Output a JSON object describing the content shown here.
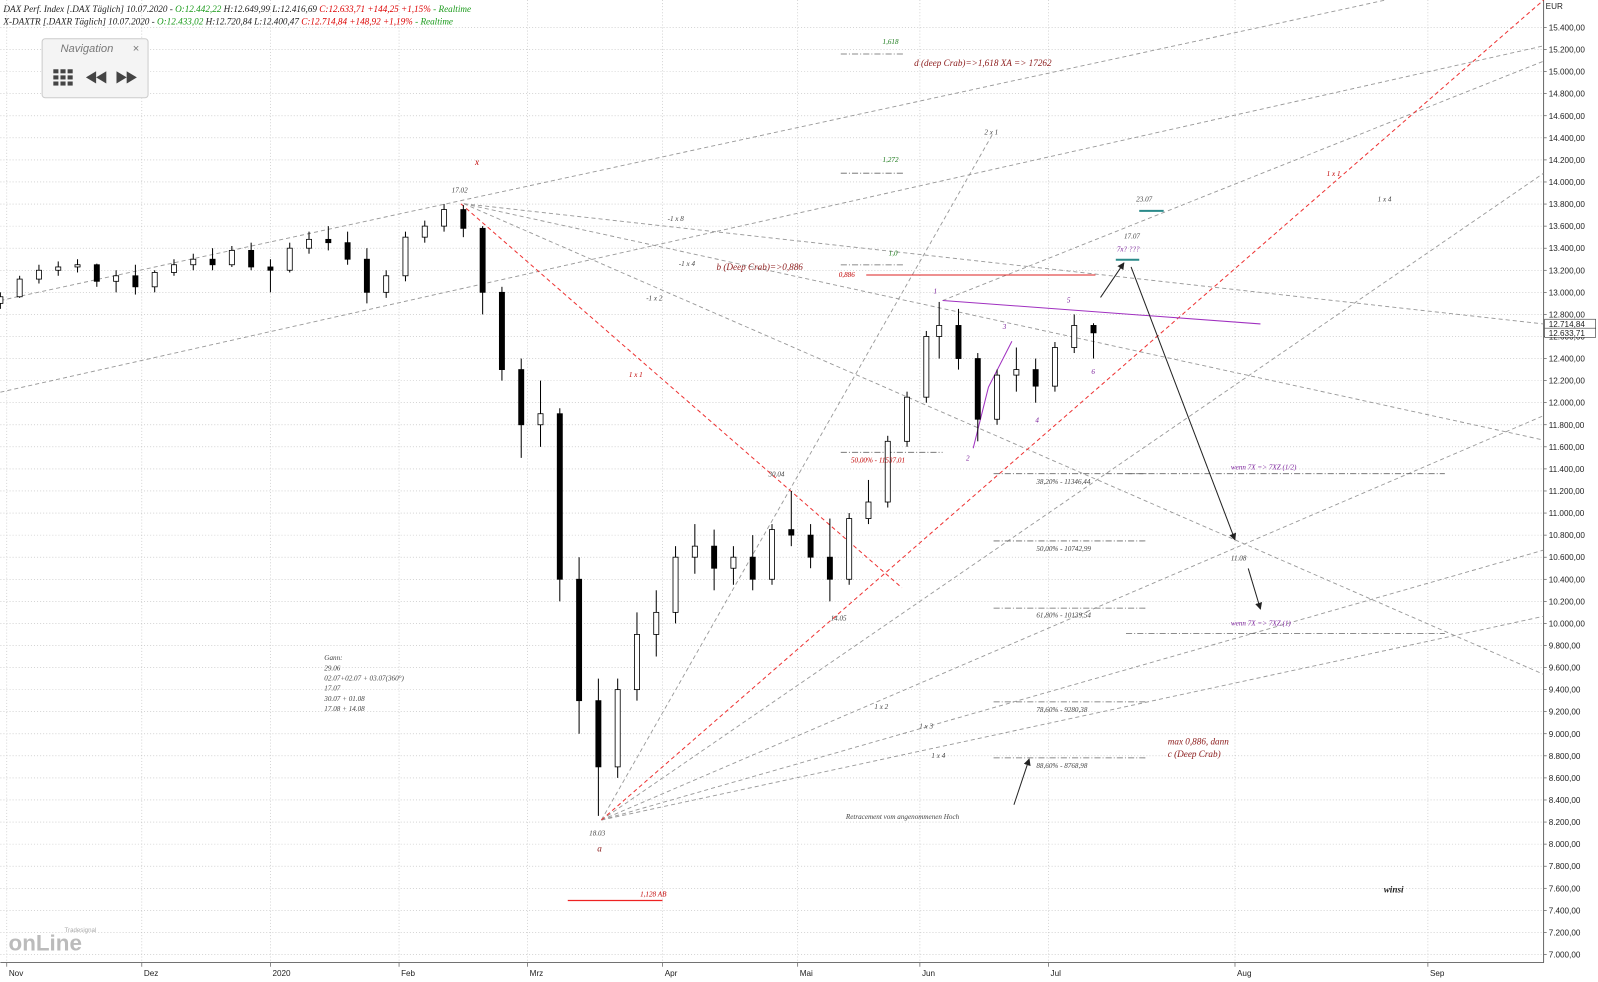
{
  "header": {
    "line1": [
      "DAX Perf. Index [.DAX Täglich] 10.07.2020 - ",
      "O:12.442,22",
      "H:12.649,99 L:12.416,69",
      "C:12.633,71 +144,25 +1,15%",
      "- Realtime"
    ],
    "line2": [
      "X-DAXTR [.DAXR Täglich] 10.07.2020 - ",
      "O:12.433,02",
      "H:12.720,84 L:12.400,47",
      "C:12.714,84 +148,92 +1,19%",
      "- Realtime"
    ]
  },
  "navigation": {
    "title": "Navigation",
    "close": "×"
  },
  "logo": {
    "brand": "Tradesignal",
    "name": "onLine"
  },
  "annotations": [
    "1,618",
    "1,272",
    "1,0",
    "d (deep Crab)=>1,618 XA => 17262",
    "x",
    "17.02",
    "2 x 1",
    "-1 x 8",
    "-1 x 4",
    "-1 x 2",
    "b (Deep Crab)=>0,886",
    "0,886",
    "1 x 1",
    "1 x 1",
    "1 x 4",
    "23.07",
    "17.07",
    "7x? ???",
    "1",
    "5",
    "3",
    "6",
    "4",
    "2",
    "50,00% - 11537,01",
    "38,20% - 11346,44",
    "50,00% - 10742,99",
    "61,80% - 10139,54",
    "78,60% - 9280,38",
    "88,60% - 8768,98",
    "wenn 7X => 7XZ (1/2)",
    "wenn 7X => 7XZ (1)",
    "30.04",
    "14.05",
    "11.08",
    "18.03",
    "a",
    "1,128 AB",
    "Gann:",
    "29.06",
    "02.07+02.07 + 03.07(360°)",
    "17.07",
    "30.07 + 01.08",
    "17.08 + 14.08",
    "1 x 2",
    "1 x 3",
    "1 x 4",
    "Retracement vom angenommenen Hoch",
    "max 0,886, dann",
    "c (Deep Crab)",
    "winsi"
  ],
  "chart_data": {
    "type": "candlestick",
    "y_label": "EUR",
    "grid": true,
    "up_color": "#ffffff",
    "down_color": "#000000",
    "x": [
      0,
      3,
      6,
      9,
      12,
      15,
      18,
      21,
      24,
      27,
      30,
      33,
      36,
      39,
      42,
      45,
      48,
      51,
      54,
      57,
      60,
      63,
      66,
      69,
      72,
      75,
      78,
      81,
      84,
      87,
      90,
      93,
      96,
      99,
      102,
      105,
      108,
      111,
      114,
      117,
      120,
      123,
      126,
      129,
      132,
      135,
      138,
      141,
      144,
      146,
      149,
      152,
      155,
      158,
      161,
      164,
      167,
      170
    ],
    "open": [
      12900,
      12960,
      13120,
      13200,
      13230,
      13250,
      13100,
      13150,
      13050,
      13180,
      13250,
      13300,
      13250,
      13380,
      13230,
      13200,
      13400,
      13480,
      13450,
      13300,
      13000,
      13150,
      13500,
      13600,
      13750,
      13580,
      13000,
      12300,
      11800,
      11900,
      10400,
      9300,
      8700,
      9400,
      9900,
      10100,
      10600,
      10700,
      10500,
      10600,
      10400,
      10850,
      10800,
      10600,
      10400,
      10950,
      11100,
      11650,
      12050,
      12600,
      12700,
      12400,
      11850,
      12250,
      12300,
      12150,
      12500,
      12700
    ],
    "high": [
      13000,
      13150,
      13250,
      13280,
      13300,
      13260,
      13200,
      13250,
      13200,
      13300,
      13350,
      13400,
      13420,
      13450,
      13300,
      13450,
      13550,
      13600,
      13550,
      13400,
      13200,
      13550,
      13650,
      13800,
      13790,
      13600,
      13050,
      12400,
      12200,
      11950,
      10600,
      9500,
      9500,
      10100,
      10300,
      10700,
      10900,
      10850,
      10700,
      10800,
      10900,
      11200,
      10900,
      10950,
      11000,
      11300,
      11700,
      12100,
      12650,
      12913,
      12850,
      12450,
      12300,
      12500,
      12400,
      12550,
      12800,
      12720
    ],
    "low": [
      12850,
      12950,
      13080,
      13150,
      13180,
      13050,
      13000,
      12980,
      13000,
      13150,
      13200,
      13200,
      13230,
      13200,
      13000,
      13180,
      13350,
      13380,
      13250,
      12900,
      12950,
      13100,
      13450,
      13550,
      13500,
      12800,
      12200,
      11500,
      11600,
      10200,
      9000,
      8256,
      8600,
      9300,
      9700,
      10000,
      10450,
      10300,
      10350,
      10300,
      10350,
      10700,
      10500,
      10200,
      10350,
      10900,
      11050,
      11600,
      12000,
      12400,
      12300,
      11650,
      11800,
      12100,
      12000,
      12100,
      12450,
      12400
    ],
    "close": [
      12960,
      13120,
      13200,
      13230,
      13250,
      13100,
      13150,
      13050,
      13180,
      13250,
      13300,
      13250,
      13380,
      13230,
      13200,
      13400,
      13480,
      13450,
      13300,
      13000,
      13150,
      13500,
      13600,
      13750,
      13580,
      13000,
      12300,
      11800,
      11900,
      10400,
      9300,
      8700,
      9400,
      9900,
      10100,
      10600,
      10700,
      10500,
      10600,
      10400,
      10850,
      10800,
      10600,
      10400,
      10950,
      11100,
      11650,
      12050,
      12600,
      12700,
      12400,
      11850,
      12250,
      12300,
      12150,
      12500,
      12700,
      12633
    ],
    "xlim": [
      0,
      240
    ],
    "xticks": [
      {
        "value": 1,
        "label": "Nov"
      },
      {
        "value": 22,
        "label": "Dez"
      },
      {
        "value": 42,
        "label": "2020"
      },
      {
        "value": 62,
        "label": "Feb"
      },
      {
        "value": 82,
        "label": "Mrz"
      },
      {
        "value": 103,
        "label": "Apr"
      },
      {
        "value": 124,
        "label": "Mai"
      },
      {
        "value": 143,
        "label": "Jun"
      },
      {
        "value": 163,
        "label": "Jul"
      },
      {
        "value": 192,
        "label": "Aug"
      },
      {
        "value": 222,
        "label": "Sep"
      }
    ],
    "ylim": [
      6926,
      15649
    ],
    "yticks": [
      {
        "value": 7000,
        "label": "7.000,00"
      },
      {
        "value": 7200,
        "label": "7.200,00"
      },
      {
        "value": 7400,
        "label": "7.400,00"
      },
      {
        "value": 7600,
        "label": "7.600,00"
      },
      {
        "value": 7800,
        "label": "7.800,00"
      },
      {
        "value": 8000,
        "label": "8.000,00"
      },
      {
        "value": 8200,
        "label": "8.200,00"
      },
      {
        "value": 8400,
        "label": "8.400,00"
      },
      {
        "value": 8600,
        "label": "8.600,00"
      },
      {
        "value": 8800,
        "label": "8.800,00"
      },
      {
        "value": 9000,
        "label": "9.000,00"
      },
      {
        "value": 9200,
        "label": "9.200,00"
      },
      {
        "value": 9400,
        "label": "9.400,00"
      },
      {
        "value": 9600,
        "label": "9.600,00"
      },
      {
        "value": 9800,
        "label": "9.800,00"
      },
      {
        "value": 10000,
        "label": "10.000,00"
      },
      {
        "value": 10200,
        "label": "10.200,00"
      },
      {
        "value": 10400,
        "label": "10.400,00"
      },
      {
        "value": 10600,
        "label": "10.600,00"
      },
      {
        "value": 10800,
        "label": "10.800,00"
      },
      {
        "value": 11000,
        "label": "11.000,00"
      },
      {
        "value": 11200,
        "label": "11.200,00"
      },
      {
        "value": 11400,
        "label": "11.400,00"
      },
      {
        "value": 11600,
        "label": "11.600,00"
      },
      {
        "value": 11800,
        "label": "11.800,00"
      },
      {
        "value": 12000,
        "label": "12.000,00"
      },
      {
        "value": 12200,
        "label": "12.200,00"
      },
      {
        "value": 12400,
        "label": "12.400,00"
      },
      {
        "value": 12600,
        "label": "12.600,00"
      },
      {
        "value": 12800,
        "label": "12.800,00"
      },
      {
        "value": 13000,
        "label": "13.000,00"
      },
      {
        "value": 13200,
        "label": "13.200,00"
      },
      {
        "value": 13400,
        "label": "13.400,00"
      },
      {
        "value": 13600,
        "label": "13.600,00"
      },
      {
        "value": 13800,
        "label": "13.800,00"
      },
      {
        "value": 14000,
        "label": "14.000,00"
      },
      {
        "value": 14200,
        "label": "14.200,00"
      },
      {
        "value": 14400,
        "label": "14.400,00"
      },
      {
        "value": 14600,
        "label": "14.600,00"
      },
      {
        "value": 14800,
        "label": "14.800,00"
      },
      {
        "value": 15000,
        "label": "15.000,00"
      },
      {
        "value": 15200,
        "label": "15.200,00"
      },
      {
        "value": 15400,
        "label": "15.400,00"
      }
    ],
    "price_markers": [
      {
        "value": 12714.84,
        "label": "12.714,84"
      },
      {
        "value": 12633.71,
        "label": "12.633,71"
      }
    ]
  }
}
